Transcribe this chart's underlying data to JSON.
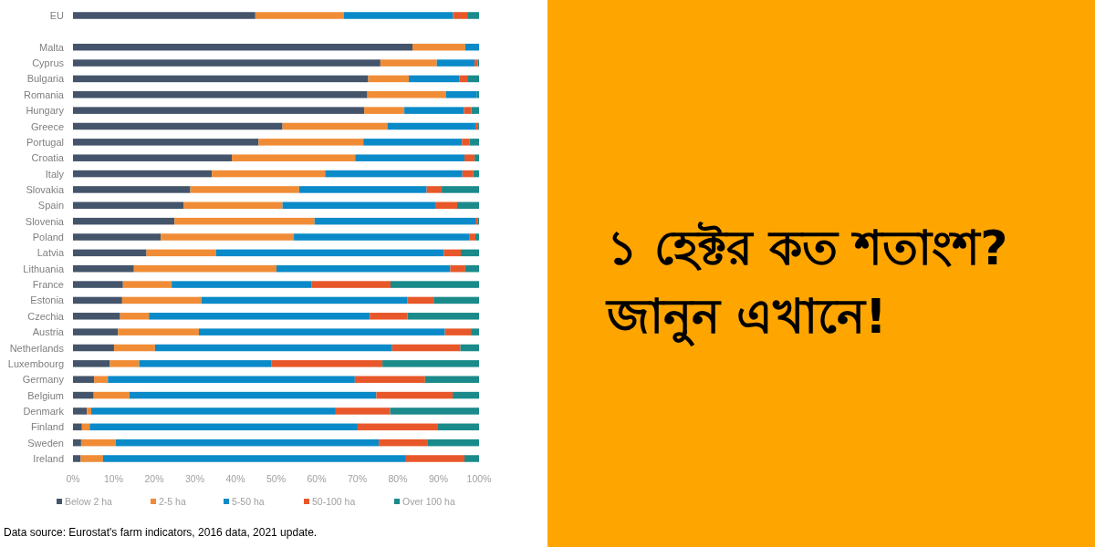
{
  "chart_data": {
    "type": "bar",
    "orientation": "horizontal",
    "stacked": true,
    "title": "১ হেক্টর কত শতাংশ? জানুন এখানে!",
    "categories": [
      "EU",
      null,
      "Malta",
      "Cyprus",
      "Bulgaria",
      "Romania",
      "Hungary",
      "Greece",
      "Portugal",
      "Croatia",
      "Italy",
      "Slovakia",
      "Spain",
      "Slovenia",
      "Poland",
      "Latvia",
      "Lithuania",
      "France",
      "Estonia",
      "Czechia",
      "Austria",
      "Netherlands",
      "Luxembourg",
      "Germany",
      "Belgium",
      "Denmark",
      "Finland",
      "Sweden",
      "Ireland"
    ],
    "series": [
      {
        "name": "Below 2 ha",
        "color": "#44546a",
        "values": [
          44.9,
          null,
          83.6,
          75.7,
          72.7,
          72.5,
          71.7,
          51.6,
          45.7,
          39.1,
          34.2,
          28.9,
          27.2,
          25.0,
          21.6,
          18.1,
          15.0,
          12.3,
          12.1,
          11.6,
          11.1,
          10.1,
          9.1,
          5.2,
          5.1,
          3.4,
          2.2,
          2.0,
          1.9
        ]
      },
      {
        "name": "2-5 ha",
        "color": "#f08c36",
        "values": [
          21.8,
          null,
          13.0,
          13.9,
          10.0,
          19.3,
          9.9,
          25.8,
          25.8,
          30.4,
          27.9,
          26.8,
          24.4,
          34.5,
          32.8,
          17.1,
          35.1,
          12.0,
          19.5,
          7.1,
          19.9,
          10.1,
          7.2,
          3.4,
          8.8,
          1.1,
          1.9,
          8.5,
          5.5
        ]
      },
      {
        "name": "5-50 ha",
        "color": "#0a8ac8",
        "values": [
          26.9,
          null,
          3.4,
          9.3,
          12.5,
          7.7,
          14.7,
          21.7,
          24.3,
          26.9,
          33.8,
          31.4,
          37.6,
          39.6,
          43.3,
          56.1,
          42.8,
          34.5,
          50.8,
          54.4,
          60.6,
          58.4,
          32.5,
          60.8,
          60.8,
          60.2,
          66.0,
          64.8,
          74.6
        ]
      },
      {
        "name": "50-100 ha",
        "color": "#e8572a",
        "values": [
          3.5,
          null,
          0,
          0.8,
          1.9,
          null,
          1.8,
          0.7,
          1.9,
          2.5,
          2.7,
          3.7,
          5.4,
          0.5,
          1.4,
          4.2,
          3.7,
          19.4,
          6.4,
          9.3,
          6.4,
          16.8,
          27.4,
          17.3,
          18.8,
          13.4,
          19.6,
          12.1,
          14.4
        ]
      },
      {
        "name": "Over 100 ha",
        "color": "#1b8a8a",
        "values": [
          2.9,
          null,
          0,
          0.3,
          2.9,
          0.5,
          1.9,
          0.2,
          2.3,
          1.1,
          1.4,
          9.2,
          5.4,
          0.4,
          0.9,
          4.5,
          3.4,
          21.8,
          11.2,
          17.6,
          2.0,
          4.6,
          23.8,
          13.3,
          6.5,
          21.9,
          10.3,
          12.6,
          3.6
        ]
      }
    ],
    "xlim": [
      0,
      100
    ],
    "xticks": [
      {
        "value": 0,
        "label": "0%"
      },
      {
        "value": 10,
        "label": "10%"
      },
      {
        "value": 20,
        "label": "20%"
      },
      {
        "value": 30,
        "label": "30%"
      },
      {
        "value": 40,
        "label": "40%"
      },
      {
        "value": 50,
        "label": "50%"
      },
      {
        "value": 60,
        "label": "60%"
      },
      {
        "value": 70,
        "label": "70%"
      },
      {
        "value": 80,
        "label": "80%"
      },
      {
        "value": 90,
        "label": "90%"
      },
      {
        "value": 100,
        "label": "100%"
      }
    ],
    "legend": "bottom",
    "grid": false,
    "annotations": [
      "Data source: Eurostat's farm indicators, 2016 data, 2021 update."
    ]
  }
}
